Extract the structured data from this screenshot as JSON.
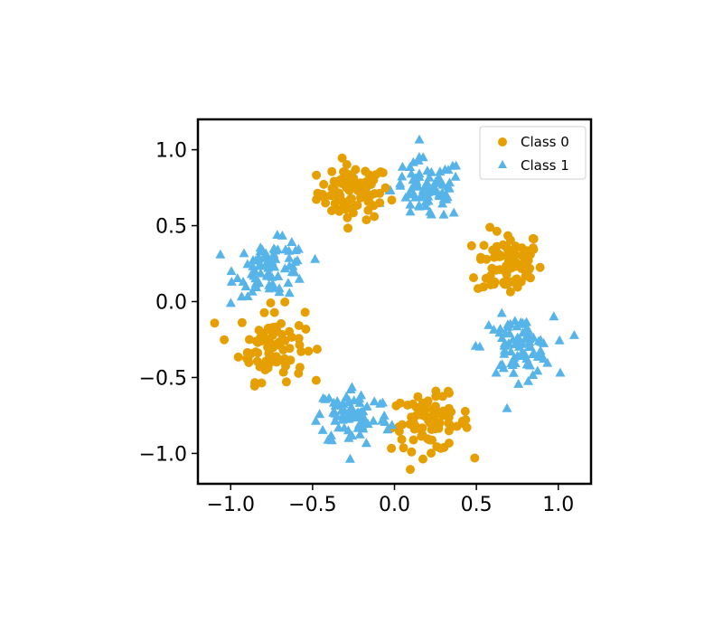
{
  "chart_data": {
    "type": "scatter",
    "title": "",
    "xlabel": "",
    "ylabel": "",
    "xlim": [
      -1.2,
      1.2
    ],
    "ylim": [
      -1.2,
      1.2
    ],
    "xticks": [
      -1.0,
      -0.5,
      0.0,
      0.5,
      1.0
    ],
    "xtick_labels": [
      "−1.0",
      "−0.5",
      "0.0",
      "0.5",
      "1.0"
    ],
    "yticks": [
      -1.0,
      -0.5,
      0.0,
      0.5,
      1.0
    ],
    "ytick_labels": [
      "−1.0",
      "−0.5",
      "0.0",
      "0.5",
      "1.0"
    ],
    "grid": false,
    "legend_position": "top-right",
    "series": [
      {
        "name": "Class 0",
        "marker": "circle",
        "color": "#e69f00",
        "clusters": [
          {
            "center": [
              -0.25,
              0.72
            ],
            "spread": [
              0.11,
              0.09
            ],
            "count": 85
          },
          {
            "center": [
              0.7,
              0.25
            ],
            "spread": [
              0.1,
              0.11
            ],
            "count": 85
          },
          {
            "center": [
              -0.75,
              -0.28
            ],
            "spread": [
              0.1,
              0.12
            ],
            "count": 85
          },
          {
            "center": [
              0.22,
              -0.8
            ],
            "spread": [
              0.12,
              0.09
            ],
            "count": 85
          }
        ]
      },
      {
        "name": "Class 1",
        "marker": "triangle",
        "color": "#56b4e9",
        "clusters": [
          {
            "center": [
              0.2,
              0.74
            ],
            "spread": [
              0.11,
              0.1
            ],
            "count": 85
          },
          {
            "center": [
              -0.75,
              0.22
            ],
            "spread": [
              0.11,
              0.09
            ],
            "count": 85
          },
          {
            "center": [
              0.75,
              -0.3
            ],
            "spread": [
              0.11,
              0.1
            ],
            "count": 85
          },
          {
            "center": [
              -0.25,
              -0.75
            ],
            "spread": [
              0.11,
              0.1
            ],
            "count": 85
          }
        ]
      }
    ]
  }
}
